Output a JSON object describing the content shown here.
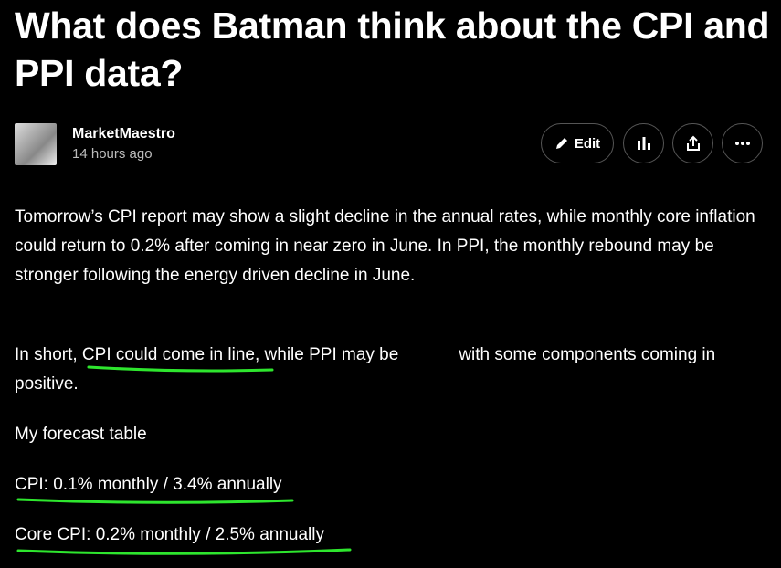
{
  "header": {
    "title": "What does Batman think about the CPI and PPI data?",
    "author": "MarketMaestro",
    "time": "14 hours ago",
    "edit_button": "Edit"
  },
  "body": {
    "paragraphs": [
      "Tomorrow’s CPI report may show a slight decline in the annual rates, while monthly core inflation could return to 0.2% after coming in near zero in June. In PPI, the monthly rebound may be stronger following the energy driven decline in June."
    ],
    "summary": {
      "start": "In short, ",
      "highlight": "CPI could come in line",
      ",": ", while PPI may be",
      "end": "with some components coming in positive."
    },
    "forecast_heading": "My forecast table",
    "forecast": [
      "CPI: 0.1% monthly / 3.4% annually",
      "Core CPI: 0.2% monthly / 2.5% annually"
    ]
  }
}
